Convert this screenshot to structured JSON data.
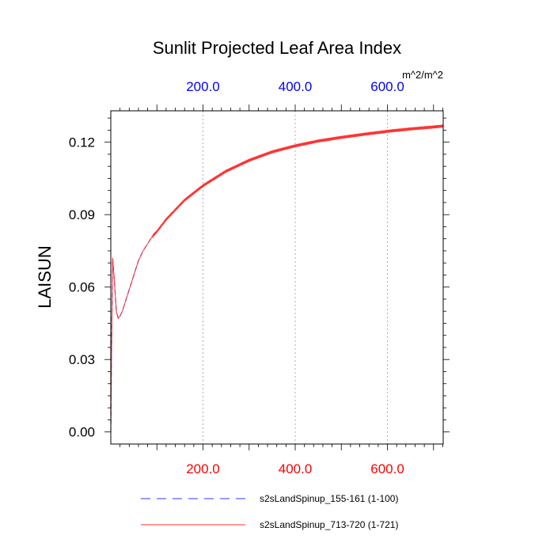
{
  "chart_data": {
    "type": "line",
    "title": "Sunlit Projected Leaf Area Index",
    "ylabel": "LAISUN",
    "units": "m^2/m^2",
    "xlim": [
      0,
      721
    ],
    "ylim": [
      -0.005,
      0.133
    ],
    "grid": "vertical dotted at x ticks",
    "x_ticks_bottom": {
      "values": [
        200,
        400,
        600
      ],
      "labels": [
        "200.0",
        "400.0",
        "600.0"
      ],
      "color": "#ff0000"
    },
    "x_ticks_top": {
      "values": [
        200,
        400,
        600
      ],
      "labels": [
        "200.0",
        "400.0",
        "600.0"
      ],
      "color": "#0000ff"
    },
    "y_ticks": {
      "values": [
        0.0,
        0.03,
        0.06,
        0.09,
        0.12
      ],
      "labels": [
        "0.00",
        "0.03",
        "0.06",
        "0.09",
        "0.12"
      ]
    },
    "series": [
      {
        "name": "s2sLandSpinup_155-161 (1-100)",
        "color": "#3333ff",
        "dash": "dashed",
        "x": [
          0,
          2,
          4,
          8,
          12,
          16,
          20,
          25,
          30,
          40,
          50,
          60,
          70,
          80,
          90,
          100
        ],
        "y": [
          0.0,
          0.04,
          0.072,
          0.062,
          0.05,
          0.047,
          0.048,
          0.05,
          0.053,
          0.059,
          0.065,
          0.071,
          0.075,
          0.078,
          0.081,
          0.083
        ]
      },
      {
        "name": "s2sLandSpinup_713-720 (1-721)",
        "color": "#ff3333",
        "dash": "solid",
        "x": [
          0,
          2,
          4,
          8,
          12,
          16,
          20,
          25,
          30,
          40,
          50,
          60,
          70,
          80,
          90,
          100,
          120,
          140,
          160,
          180,
          200,
          250,
          300,
          350,
          400,
          450,
          500,
          550,
          600,
          650,
          700,
          721
        ],
        "y": [
          0.0,
          0.04,
          0.072,
          0.062,
          0.05,
          0.047,
          0.048,
          0.05,
          0.053,
          0.059,
          0.065,
          0.071,
          0.075,
          0.078,
          0.081,
          0.083,
          0.088,
          0.092,
          0.096,
          0.099,
          0.102,
          0.108,
          0.1125,
          0.116,
          0.1185,
          0.1205,
          0.122,
          0.1233,
          0.1245,
          0.1255,
          0.1263,
          0.1267
        ],
        "oscillation_amplitude": 0.0012
      }
    ]
  }
}
